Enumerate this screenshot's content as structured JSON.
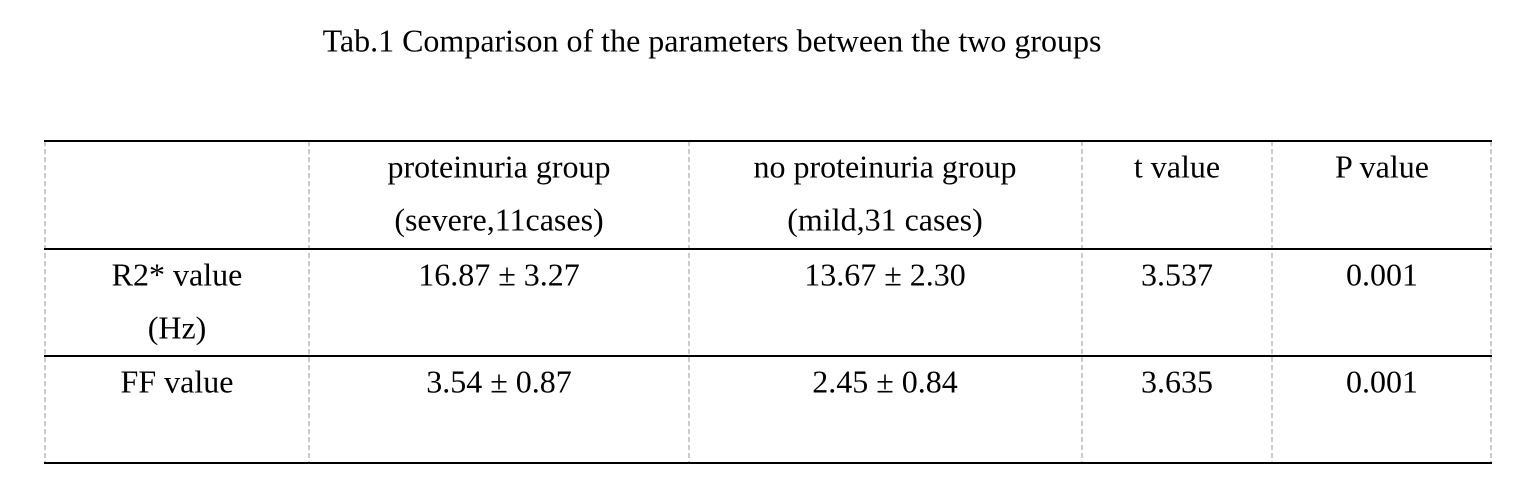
{
  "title": "Tab.1 Comparison of the parameters between the two groups",
  "table": {
    "header": [
      [
        "proteinuria group",
        "(severe,11cases)"
      ],
      [
        "no proteinuria group",
        "(mild,31 cases)"
      ],
      [
        "t value"
      ],
      [
        "P value"
      ]
    ],
    "rows": [
      [
        [
          "R2* value",
          "(Hz)"
        ],
        "16.87 ± 3.27",
        "13.67 ± 2.30",
        "3.537",
        "0.001"
      ],
      [
        [
          "FF value"
        ],
        "3.54 ± 0.87",
        "2.45 ± 0.84",
        "3.635",
        "0.001"
      ]
    ]
  }
}
